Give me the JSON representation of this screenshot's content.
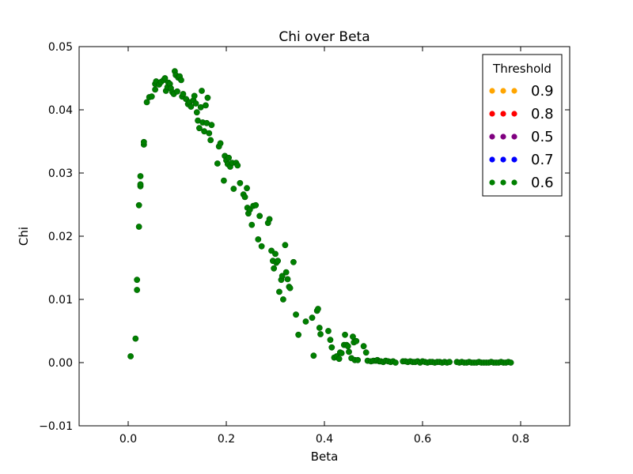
{
  "chart_data": {
    "type": "scatter",
    "title": "Chi over Beta",
    "xlabel": "Beta",
    "ylabel": "Chi",
    "xlim": [
      -0.1,
      0.9
    ],
    "ylim": [
      -0.01,
      0.05
    ],
    "xticks": [
      "0.0",
      "0.2",
      "0.4",
      "0.6",
      "0.8"
    ],
    "yticks": [
      "−0.01",
      "0.00",
      "0.01",
      "0.02",
      "0.03",
      "0.04",
      "0.05"
    ],
    "xtick_values": [
      0.0,
      0.2,
      0.4,
      0.6,
      0.8
    ],
    "ytick_values": [
      -0.01,
      0.0,
      0.01,
      0.02,
      0.03,
      0.04,
      0.05
    ],
    "grid": false,
    "legend": {
      "title": "Threshold",
      "placement": "top-right",
      "entries": [
        {
          "label": "0.9",
          "color": "#ffa500"
        },
        {
          "label": "0.8",
          "color": "#ff0000"
        },
        {
          "label": "0.5",
          "color": "#800080"
        },
        {
          "label": "0.7",
          "color": "#0000ff"
        },
        {
          "label": "0.6",
          "color": "#008000"
        }
      ]
    },
    "series": [
      {
        "name": "0.6",
        "color": "#008000",
        "points": [
          [
            0.005,
            0.001
          ],
          [
            0.015,
            0.0038
          ],
          [
            0.018,
            0.0115
          ],
          [
            0.018,
            0.0131
          ],
          [
            0.022,
            0.0215
          ],
          [
            0.022,
            0.0249
          ],
          [
            0.025,
            0.0279
          ],
          [
            0.025,
            0.0282
          ],
          [
            0.025,
            0.0295
          ],
          [
            0.032,
            0.0345
          ],
          [
            0.032,
            0.0349
          ],
          [
            0.038,
            0.0412
          ],
          [
            0.043,
            0.042
          ],
          [
            0.048,
            0.0421
          ],
          [
            0.055,
            0.0432
          ],
          [
            0.055,
            0.0441
          ],
          [
            0.057,
            0.0445
          ],
          [
            0.063,
            0.044
          ],
          [
            0.067,
            0.0444
          ],
          [
            0.072,
            0.0447
          ],
          [
            0.075,
            0.045
          ],
          [
            0.077,
            0.043
          ],
          [
            0.08,
            0.0436
          ],
          [
            0.082,
            0.0443
          ],
          [
            0.085,
            0.0441
          ],
          [
            0.087,
            0.0434
          ],
          [
            0.09,
            0.0428
          ],
          [
            0.093,
            0.0425
          ],
          [
            0.095,
            0.0461
          ],
          [
            0.097,
            0.0455
          ],
          [
            0.1,
            0.0429
          ],
          [
            0.102,
            0.0451
          ],
          [
            0.105,
            0.0453
          ],
          [
            0.108,
            0.0447
          ],
          [
            0.11,
            0.0421
          ],
          [
            0.112,
            0.0425
          ],
          [
            0.118,
            0.0417
          ],
          [
            0.122,
            0.0409
          ],
          [
            0.125,
            0.0412
          ],
          [
            0.128,
            0.0405
          ],
          [
            0.133,
            0.0415
          ],
          [
            0.135,
            0.0422
          ],
          [
            0.138,
            0.041
          ],
          [
            0.14,
            0.0396
          ],
          [
            0.142,
            0.0383
          ],
          [
            0.145,
            0.0371
          ],
          [
            0.148,
            0.0404
          ],
          [
            0.15,
            0.043
          ],
          [
            0.152,
            0.038
          ],
          [
            0.155,
            0.0366
          ],
          [
            0.158,
            0.0407
          ],
          [
            0.16,
            0.0379
          ],
          [
            0.162,
            0.0419
          ],
          [
            0.165,
            0.0363
          ],
          [
            0.168,
            0.0352
          ],
          [
            0.17,
            0.0376
          ],
          [
            0.182,
            0.0315
          ],
          [
            0.185,
            0.0342
          ],
          [
            0.188,
            0.0347
          ],
          [
            0.195,
            0.0288
          ],
          [
            0.197,
            0.0327
          ],
          [
            0.2,
            0.032
          ],
          [
            0.203,
            0.0314
          ],
          [
            0.205,
            0.0324
          ],
          [
            0.208,
            0.031
          ],
          [
            0.212,
            0.0316
          ],
          [
            0.215,
            0.0275
          ],
          [
            0.22,
            0.0316
          ],
          [
            0.223,
            0.0312
          ],
          [
            0.228,
            0.0284
          ],
          [
            0.235,
            0.0266
          ],
          [
            0.238,
            0.0262
          ],
          [
            0.242,
            0.0276
          ],
          [
            0.243,
            0.0245
          ],
          [
            0.245,
            0.0236
          ],
          [
            0.248,
            0.0242
          ],
          [
            0.252,
            0.0218
          ],
          [
            0.255,
            0.0248
          ],
          [
            0.26,
            0.0249
          ],
          [
            0.265,
            0.0195
          ],
          [
            0.268,
            0.0232
          ],
          [
            0.272,
            0.0184
          ],
          [
            0.285,
            0.0221
          ],
          [
            0.288,
            0.0227
          ],
          [
            0.292,
            0.0177
          ],
          [
            0.295,
            0.0161
          ],
          [
            0.297,
            0.0149
          ],
          [
            0.3,
            0.0172
          ],
          [
            0.302,
            0.0158
          ],
          [
            0.305,
            0.0161
          ],
          [
            0.308,
            0.0112
          ],
          [
            0.312,
            0.0131
          ],
          [
            0.314,
            0.0137
          ],
          [
            0.316,
            0.01
          ],
          [
            0.32,
            0.0186
          ],
          [
            0.322,
            0.0143
          ],
          [
            0.325,
            0.0132
          ],
          [
            0.328,
            0.012
          ],
          [
            0.33,
            0.0118
          ],
          [
            0.337,
            0.0159
          ],
          [
            0.342,
            0.0076
          ],
          [
            0.347,
            0.0044
          ],
          [
            0.362,
            0.0065
          ],
          [
            0.375,
            0.0071
          ],
          [
            0.378,
            0.0011
          ],
          [
            0.385,
            0.0082
          ],
          [
            0.387,
            0.0085
          ],
          [
            0.39,
            0.0055
          ],
          [
            0.392,
            0.0045
          ],
          [
            0.408,
            0.005
          ],
          [
            0.412,
            0.0036
          ],
          [
            0.415,
            0.0024
          ],
          [
            0.42,
            0.0008
          ],
          [
            0.425,
            0.001
          ],
          [
            0.43,
            0.0006
          ],
          [
            0.432,
            0.0016
          ],
          [
            0.435,
            0.0015
          ],
          [
            0.44,
            0.0028
          ],
          [
            0.442,
            0.0044
          ],
          [
            0.445,
            0.0028
          ],
          [
            0.448,
            0.0026
          ],
          [
            0.45,
            0.0017
          ],
          [
            0.455,
            0.0007
          ],
          [
            0.458,
            0.0041
          ],
          [
            0.46,
            0.0032
          ],
          [
            0.462,
            0.0004
          ],
          [
            0.465,
            0.0034
          ],
          [
            0.468,
            0.0004
          ],
          [
            0.48,
            0.0026
          ],
          [
            0.485,
            0.0016
          ],
          [
            0.488,
            0.0003
          ],
          [
            0.495,
            0.0002
          ],
          [
            0.5,
            0.0003
          ],
          [
            0.505,
            0.0003
          ],
          [
            0.508,
            0.0004
          ],
          [
            0.512,
            0.0002
          ],
          [
            0.515,
            0.0002
          ],
          [
            0.52,
            0.0001
          ],
          [
            0.525,
            0.0003
          ],
          [
            0.53,
            0.0002
          ],
          [
            0.535,
            0.0001
          ],
          [
            0.54,
            0.0002
          ],
          [
            0.545,
            0.0
          ],
          [
            0.56,
            0.0002
          ],
          [
            0.565,
            0.0002
          ],
          [
            0.57,
            0.0001
          ],
          [
            0.575,
            0.0002
          ],
          [
            0.58,
            0.0001
          ],
          [
            0.585,
            0.0001
          ],
          [
            0.59,
            0.0002
          ],
          [
            0.595,
            0.0
          ],
          [
            0.6,
            0.0002
          ],
          [
            0.605,
            0.0001
          ],
          [
            0.61,
            0.0
          ],
          [
            0.615,
            0.0001
          ],
          [
            0.62,
            0.0001
          ],
          [
            0.625,
            0.0
          ],
          [
            0.63,
            0.0001
          ],
          [
            0.635,
            0.0001
          ],
          [
            0.64,
            0.0
          ],
          [
            0.645,
            0.0001
          ],
          [
            0.65,
            0.0
          ],
          [
            0.655,
            0.0001
          ],
          [
            0.67,
            0.0001
          ],
          [
            0.675,
            0.0
          ],
          [
            0.68,
            0.0001
          ],
          [
            0.685,
            0.0
          ],
          [
            0.69,
            0.0
          ],
          [
            0.695,
            0.0001
          ],
          [
            0.7,
            0.0
          ],
          [
            0.705,
            0.0
          ],
          [
            0.71,
            0.0
          ],
          [
            0.715,
            0.0001
          ],
          [
            0.72,
            0.0
          ],
          [
            0.725,
            0.0
          ],
          [
            0.73,
            0.0
          ],
          [
            0.735,
            0.0
          ],
          [
            0.74,
            0.0001
          ],
          [
            0.745,
            0.0
          ],
          [
            0.75,
            0.0
          ],
          [
            0.755,
            0.0
          ],
          [
            0.76,
            0.0001
          ],
          [
            0.765,
            0.0
          ],
          [
            0.77,
            0.0
          ],
          [
            0.775,
            0.0001
          ],
          [
            0.78,
            0.0
          ]
        ]
      }
    ]
  }
}
